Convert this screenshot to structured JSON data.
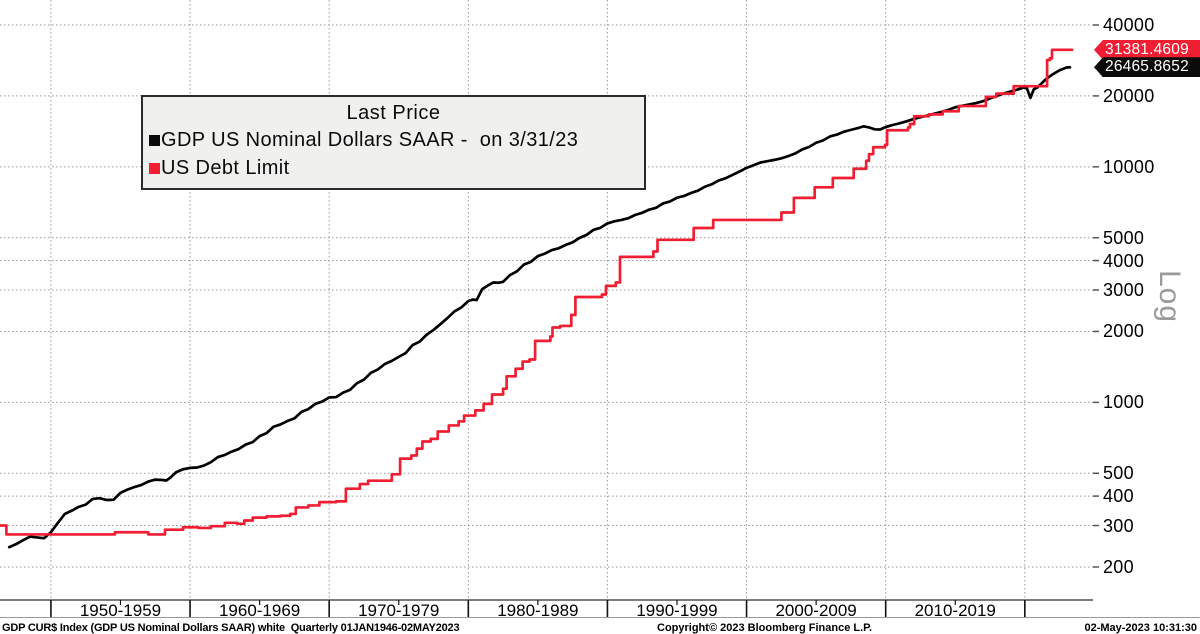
{
  "legend": {
    "title": "Last Price",
    "entries": [
      {
        "label": "GDP US Nominal Dollars SAAR -  on 3/31/23",
        "color": "#0a0a0a"
      },
      {
        "label": "US Debt Limit",
        "color": "#ef1e33"
      }
    ]
  },
  "price_tags": [
    {
      "value": "31381.4609",
      "color": "#ef1e33"
    },
    {
      "value": "26465.8652",
      "color": "#0b0b0b"
    }
  ],
  "axis": {
    "scale_label": "Log"
  },
  "status_bar": {
    "left": "GDP CUR$ Index (GDP US Nominal Dollars SAAR) white  Quarterly 01JAN1946-02MAY2023",
    "center": "Copyright© 2023 Bloomberg Finance L.P.",
    "right": "02-May-2023 10:31:30"
  },
  "chart_data": {
    "type": "line",
    "title": "Last Price",
    "y_axis": {
      "scale": "log",
      "ticks": [
        40000,
        20000,
        10000,
        5000,
        4000,
        3000,
        2000,
        1000,
        500,
        400,
        300,
        200
      ],
      "top_value": 40000,
      "bottom_value": 200
    },
    "x_axis": {
      "start_year": 1946.34,
      "end_year": 2024.9,
      "gridline_years": [
        1950,
        1960,
        1970,
        1980,
        1990,
        2000,
        2010,
        2020
      ],
      "mid_tick_years": [
        1955,
        1965,
        1975,
        1985,
        1995,
        2005,
        2015
      ],
      "labels": [
        "1950-1959",
        "1960-1969",
        "1970-1979",
        "1980-1989",
        "1990-1999",
        "2000-2009",
        "2010-2019"
      ]
    },
    "series": [
      {
        "name": "GDP US Nominal Dollars SAAR",
        "color": "#000000",
        "mode": "linear",
        "last_price": 26465.8652,
        "points": [
          [
            1947.0,
            243
          ],
          [
            1947.5,
            250
          ],
          [
            1948.0,
            260
          ],
          [
            1948.5,
            269
          ],
          [
            1949.0,
            267
          ],
          [
            1949.5,
            265
          ],
          [
            1950.0,
            281
          ],
          [
            1950.5,
            308
          ],
          [
            1951.0,
            336
          ],
          [
            1951.5,
            347
          ],
          [
            1952.0,
            360
          ],
          [
            1952.5,
            368
          ],
          [
            1953.0,
            389
          ],
          [
            1953.5,
            392
          ],
          [
            1954.0,
            385
          ],
          [
            1954.5,
            386
          ],
          [
            1955.0,
            413
          ],
          [
            1955.5,
            426
          ],
          [
            1956.0,
            437
          ],
          [
            1956.5,
            446
          ],
          [
            1957.0,
            461
          ],
          [
            1957.5,
            470
          ],
          [
            1958.0,
            468
          ],
          [
            1958.3,
            466
          ],
          [
            1958.6,
            480
          ],
          [
            1959.0,
            505
          ],
          [
            1959.5,
            520
          ],
          [
            1960.0,
            527
          ],
          [
            1960.5,
            529
          ],
          [
            1961.0,
            539
          ],
          [
            1961.5,
            557
          ],
          [
            1962.0,
            586
          ],
          [
            1962.5,
            598
          ],
          [
            1963.0,
            618
          ],
          [
            1963.5,
            634
          ],
          [
            1964.0,
            662
          ],
          [
            1964.5,
            678
          ],
          [
            1965.0,
            719
          ],
          [
            1965.5,
            740
          ],
          [
            1966.0,
            788
          ],
          [
            1966.5,
            806
          ],
          [
            1967.0,
            833
          ],
          [
            1967.5,
            855
          ],
          [
            1968.0,
            910
          ],
          [
            1968.5,
            936
          ],
          [
            1969.0,
            985
          ],
          [
            1969.5,
            1008
          ],
          [
            1970.0,
            1049
          ],
          [
            1970.5,
            1053
          ],
          [
            1971.0,
            1100
          ],
          [
            1971.5,
            1130
          ],
          [
            1972.0,
            1206
          ],
          [
            1972.5,
            1250
          ],
          [
            1973.0,
            1335
          ],
          [
            1973.5,
            1380
          ],
          [
            1974.0,
            1455
          ],
          [
            1974.5,
            1500
          ],
          [
            1975.0,
            1560
          ],
          [
            1975.5,
            1620
          ],
          [
            1976.0,
            1752
          ],
          [
            1976.5,
            1810
          ],
          [
            1977.0,
            1937
          ],
          [
            1977.5,
            2030
          ],
          [
            1978.0,
            2150
          ],
          [
            1978.5,
            2280
          ],
          [
            1979.0,
            2432
          ],
          [
            1979.5,
            2530
          ],
          [
            1980.0,
            2690
          ],
          [
            1980.3,
            2730
          ],
          [
            1980.6,
            2720
          ],
          [
            1981.0,
            3026
          ],
          [
            1981.5,
            3160
          ],
          [
            1981.8,
            3228
          ],
          [
            1982.2,
            3220
          ],
          [
            1982.5,
            3250
          ],
          [
            1983.0,
            3470
          ],
          [
            1983.5,
            3600
          ],
          [
            1984.0,
            3850
          ],
          [
            1984.5,
            3950
          ],
          [
            1985.0,
            4180
          ],
          [
            1985.5,
            4280
          ],
          [
            1986.0,
            4430
          ],
          [
            1986.5,
            4510
          ],
          [
            1987.0,
            4660
          ],
          [
            1987.5,
            4780
          ],
          [
            1988.0,
            4990
          ],
          [
            1988.5,
            5140
          ],
          [
            1989.0,
            5400
          ],
          [
            1989.5,
            5510
          ],
          [
            1990.0,
            5750
          ],
          [
            1990.5,
            5870
          ],
          [
            1991.0,
            5950
          ],
          [
            1991.5,
            6050
          ],
          [
            1992.0,
            6250
          ],
          [
            1992.5,
            6380
          ],
          [
            1993.0,
            6580
          ],
          [
            1993.5,
            6700
          ],
          [
            1994.0,
            6990
          ],
          [
            1994.5,
            7130
          ],
          [
            1995.0,
            7390
          ],
          [
            1995.5,
            7520
          ],
          [
            1996.0,
            7740
          ],
          [
            1996.5,
            7920
          ],
          [
            1997.0,
            8230
          ],
          [
            1997.5,
            8430
          ],
          [
            1998.0,
            8750
          ],
          [
            1998.5,
            8950
          ],
          [
            1999.0,
            9250
          ],
          [
            1999.5,
            9550
          ],
          [
            2000.0,
            9900
          ],
          [
            2000.5,
            10150
          ],
          [
            2001.0,
            10430
          ],
          [
            2001.5,
            10570
          ],
          [
            2002.0,
            10700
          ],
          [
            2002.5,
            10870
          ],
          [
            2003.0,
            11100
          ],
          [
            2003.5,
            11400
          ],
          [
            2004.0,
            11850
          ],
          [
            2004.5,
            12150
          ],
          [
            2005.0,
            12650
          ],
          [
            2005.5,
            12950
          ],
          [
            2006.0,
            13450
          ],
          [
            2006.5,
            13700
          ],
          [
            2007.0,
            14100
          ],
          [
            2007.5,
            14350
          ],
          [
            2008.0,
            14600
          ],
          [
            2008.4,
            14850
          ],
          [
            2008.8,
            14700
          ],
          [
            2009.2,
            14430
          ],
          [
            2009.6,
            14400
          ],
          [
            2010.0,
            14750
          ],
          [
            2010.5,
            15050
          ],
          [
            2011.0,
            15300
          ],
          [
            2011.5,
            15600
          ],
          [
            2012.0,
            15950
          ],
          [
            2012.5,
            16250
          ],
          [
            2013.0,
            16500
          ],
          [
            2013.5,
            16800
          ],
          [
            2014.0,
            17100
          ],
          [
            2014.5,
            17450
          ],
          [
            2015.0,
            17900
          ],
          [
            2015.5,
            18150
          ],
          [
            2016.0,
            18400
          ],
          [
            2016.5,
            18650
          ],
          [
            2017.0,
            19000
          ],
          [
            2017.5,
            19500
          ],
          [
            2018.0,
            20000
          ],
          [
            2018.5,
            20500
          ],
          [
            2019.0,
            20900
          ],
          [
            2019.5,
            21300
          ],
          [
            2019.9,
            21700
          ],
          [
            2020.15,
            21540
          ],
          [
            2020.4,
            19630
          ],
          [
            2020.65,
            21360
          ],
          [
            2020.9,
            21700
          ],
          [
            2021.1,
            22300
          ],
          [
            2021.5,
            23500
          ],
          [
            2022.0,
            24700
          ],
          [
            2022.5,
            25700
          ],
          [
            2023.0,
            26400
          ],
          [
            2023.25,
            26465.8652
          ]
        ]
      },
      {
        "name": "US Debt Limit",
        "color": "#ef1e33",
        "mode": "step",
        "last_price": 31381.4609,
        "points": [
          [
            1946.34,
            300
          ],
          [
            1946.8,
            275
          ],
          [
            1954.6,
            281
          ],
          [
            1957.0,
            275
          ],
          [
            1958.2,
            288
          ],
          [
            1959.5,
            295
          ],
          [
            1960.6,
            293
          ],
          [
            1961.5,
            298
          ],
          [
            1962.5,
            308
          ],
          [
            1963.4,
            305
          ],
          [
            1963.9,
            315
          ],
          [
            1964.5,
            324
          ],
          [
            1965.5,
            328
          ],
          [
            1966.5,
            330
          ],
          [
            1967.2,
            336
          ],
          [
            1967.6,
            358
          ],
          [
            1968.5,
            365
          ],
          [
            1969.3,
            377
          ],
          [
            1970.5,
            380
          ],
          [
            1971.2,
            430
          ],
          [
            1972.2,
            450
          ],
          [
            1972.8,
            465
          ],
          [
            1974.5,
            495
          ],
          [
            1975.1,
            577
          ],
          [
            1975.9,
            595
          ],
          [
            1976.3,
            636
          ],
          [
            1976.7,
            682
          ],
          [
            1977.3,
            700
          ],
          [
            1977.8,
            752
          ],
          [
            1978.6,
            798
          ],
          [
            1979.3,
            830
          ],
          [
            1979.7,
            879
          ],
          [
            1980.5,
            925
          ],
          [
            1981.1,
            985
          ],
          [
            1981.7,
            1079.8
          ],
          [
            1982.5,
            1143.1
          ],
          [
            1982.75,
            1290.2
          ],
          [
            1983.4,
            1389
          ],
          [
            1983.9,
            1490
          ],
          [
            1984.4,
            1520
          ],
          [
            1984.8,
            1823.8
          ],
          [
            1985.9,
            1903.8
          ],
          [
            1986.05,
            2078.7
          ],
          [
            1986.6,
            2111
          ],
          [
            1987.4,
            2352
          ],
          [
            1987.7,
            2800
          ],
          [
            1989.6,
            2870
          ],
          [
            1989.9,
            3122.7
          ],
          [
            1990.6,
            3230
          ],
          [
            1990.9,
            4145
          ],
          [
            1993.3,
            4370
          ],
          [
            1993.6,
            4900
          ],
          [
            1996.2,
            5500
          ],
          [
            1997.6,
            5950
          ],
          [
            2002.5,
            6400
          ],
          [
            2003.4,
            7384
          ],
          [
            2004.9,
            8184
          ],
          [
            2006.2,
            8965
          ],
          [
            2007.7,
            9815
          ],
          [
            2008.6,
            10615
          ],
          [
            2008.8,
            11315
          ],
          [
            2009.1,
            12104
          ],
          [
            2009.95,
            12394
          ],
          [
            2010.1,
            14294
          ],
          [
            2011.6,
            14694
          ],
          [
            2011.75,
            15194
          ],
          [
            2012.05,
            16394
          ],
          [
            2013.1,
            16699
          ],
          [
            2014.1,
            17212
          ],
          [
            2015.25,
            18113
          ],
          [
            2017.2,
            19809
          ],
          [
            2017.95,
            20456
          ],
          [
            2019.2,
            21988
          ],
          [
            2021.6,
            28401
          ],
          [
            2021.8,
            28900
          ],
          [
            2021.95,
            31381.4609
          ],
          [
            2023.4,
            31381.4609
          ]
        ]
      }
    ]
  }
}
